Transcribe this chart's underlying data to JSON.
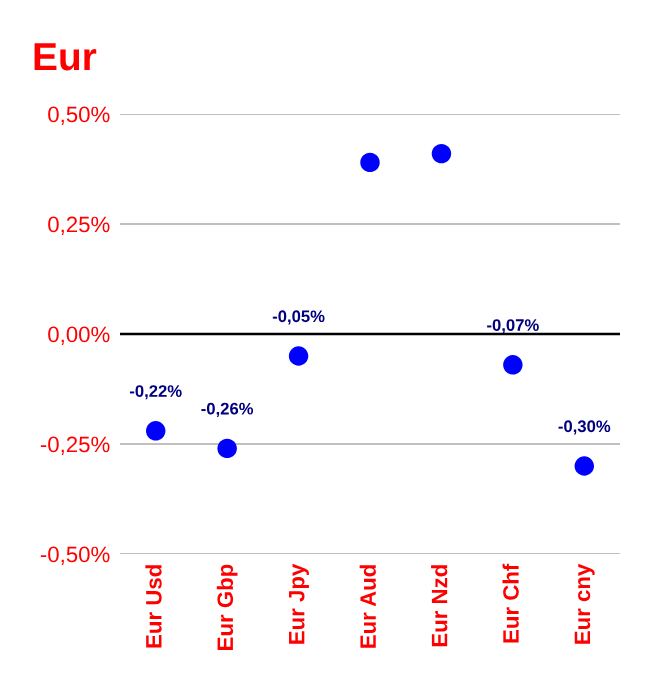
{
  "chart_data": {
    "type": "scatter",
    "title": "Eur",
    "categories": [
      "Eur Usd",
      "Eur Gbp",
      "Eur Jpy",
      "Eur Aud",
      "Eur Nzd",
      "Eur Chf",
      "Eur cny"
    ],
    "series": [
      {
        "color": "#0000ff",
        "values": [
          -0.22,
          -0.26,
          -0.05,
          0.39,
          0.41,
          -0.07,
          -0.3
        ],
        "value_labels": [
          "-0,22%",
          "-0,26%",
          "-0,05%",
          null,
          null,
          "-0,07%",
          "-0,30%"
        ]
      }
    ],
    "ylim": [
      -0.5,
      0.5
    ],
    "yticks": [
      {
        "value": -0.5,
        "label": "-0,50%"
      },
      {
        "value": -0.25,
        "label": "-0,25%"
      },
      {
        "value": 0,
        "label": "0,00%"
      },
      {
        "value": 0.25,
        "label": "0,25%"
      },
      {
        "value": 0.5,
        "label": "0,50%"
      }
    ],
    "grid": "y",
    "marker": "circle",
    "legend": false,
    "ref_lines": [
      {
        "axis": "y",
        "value": 0,
        "color": "#000000"
      }
    ]
  }
}
